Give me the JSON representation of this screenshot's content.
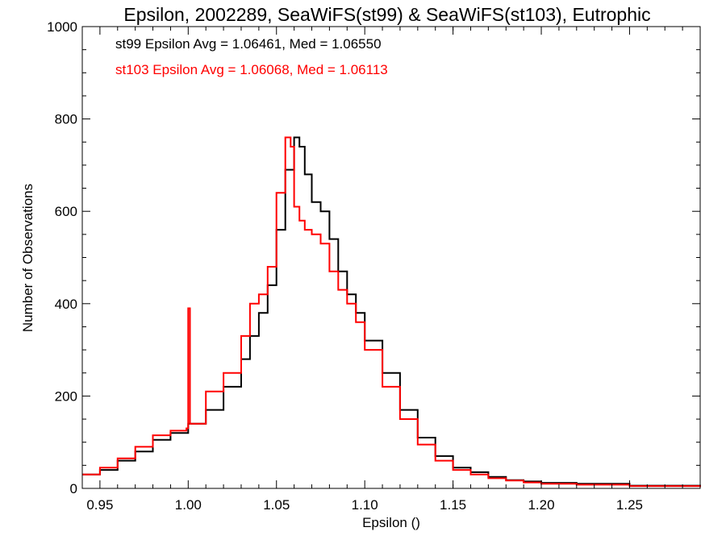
{
  "chart_data": {
    "type": "line",
    "style": "histogram-step",
    "title": "Epsilon, 2002289, SeaWiFS(st99) & SeaWiFS(st103), Eutrophic",
    "xlabel": "Epsilon ()",
    "ylabel": "Number of Observations",
    "xlim": [
      0.94,
      1.29
    ],
    "ylim": [
      0,
      1000
    ],
    "xticks": [
      0.95,
      1.0,
      1.05,
      1.1,
      1.15,
      1.2,
      1.25
    ],
    "xtick_labels": [
      "0.95",
      "1.00",
      "1.05",
      "1.10",
      "1.15",
      "1.20",
      "1.25"
    ],
    "yticks": [
      0,
      200,
      400,
      600,
      800,
      1000
    ],
    "ytick_labels": [
      "0",
      "200",
      "400",
      "600",
      "800",
      "1000"
    ],
    "grid": false,
    "annotations": [
      {
        "text": "st99 Epsilon Avg = 1.06461, Med = 1.06550",
        "color": "#000000"
      },
      {
        "text": "st103 Epsilon Avg = 1.06068, Med = 1.06113",
        "color": "#ff0000"
      }
    ],
    "series": [
      {
        "color": "#000000",
        "x": [
          0.94,
          0.95,
          0.96,
          0.97,
          0.98,
          0.99,
          1.0,
          1.01,
          1.02,
          1.03,
          1.035,
          1.04,
          1.045,
          1.05,
          1.055,
          1.06,
          1.063,
          1.066,
          1.07,
          1.075,
          1.08,
          1.085,
          1.09,
          1.095,
          1.1,
          1.11,
          1.12,
          1.13,
          1.14,
          1.15,
          1.16,
          1.17,
          1.18,
          1.19,
          1.2,
          1.22,
          1.25,
          1.29
        ],
        "values": [
          30,
          40,
          60,
          80,
          105,
          120,
          140,
          170,
          220,
          280,
          330,
          380,
          440,
          560,
          690,
          760,
          740,
          680,
          620,
          600,
          540,
          470,
          420,
          380,
          320,
          250,
          170,
          110,
          70,
          45,
          35,
          25,
          18,
          15,
          12,
          10,
          6,
          4
        ]
      },
      {
        "color": "#ff0000",
        "x": [
          0.94,
          0.95,
          0.96,
          0.97,
          0.98,
          0.99,
          0.999,
          1.0,
          1.001,
          1.01,
          1.02,
          1.03,
          1.035,
          1.04,
          1.045,
          1.05,
          1.055,
          1.058,
          1.06,
          1.063,
          1.066,
          1.07,
          1.075,
          1.08,
          1.085,
          1.09,
          1.095,
          1.1,
          1.11,
          1.12,
          1.13,
          1.14,
          1.15,
          1.16,
          1.17,
          1.18,
          1.19,
          1.2,
          1.22,
          1.25,
          1.29
        ],
        "values": [
          30,
          45,
          65,
          90,
          115,
          125,
          130,
          390,
          140,
          210,
          250,
          330,
          400,
          420,
          480,
          640,
          760,
          740,
          610,
          580,
          560,
          550,
          530,
          470,
          430,
          400,
          360,
          300,
          220,
          150,
          95,
          60,
          40,
          30,
          22,
          17,
          13,
          10,
          8,
          5,
          3
        ]
      }
    ]
  }
}
